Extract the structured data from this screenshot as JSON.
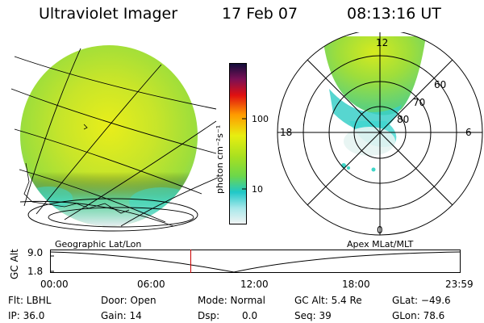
{
  "header": {
    "instrument": "Ultraviolet Imager",
    "date": "17 Feb 07",
    "time": "08:13:16 UT"
  },
  "colorbar": {
    "label": "photon cm⁻²s⁻¹",
    "ticks": [
      "100",
      "10"
    ]
  },
  "polar": {
    "mlt_labels": {
      "top": "12",
      "left": "18",
      "right": "6",
      "bottom": "0"
    },
    "lat_labels": [
      "60",
      "70",
      "80"
    ]
  },
  "timeline": {
    "left_title": "Geographic Lat/Lon",
    "right_title": "Apex  MLat/MLT",
    "axis_label": "GC Alt",
    "y_ticks": [
      "9.0",
      "1.8"
    ],
    "x_ticks": [
      "00:00",
      "06:00",
      "12:00",
      "18:00",
      "23:59"
    ],
    "current_time_hours": 8.22
  },
  "status": {
    "filter": "Flt: LBHL",
    "door": "Door: Open",
    "mode": "Mode: Normal",
    "gc_alt": "GC Alt: 5.4 Re",
    "glat": "GLat: −49.6",
    "ip": "IP: 36.0",
    "gain": "Gain: 14",
    "dsp_label": "Dsp:",
    "dsp_value": "0.0",
    "seq": "Seq: 39",
    "glon": "GLon: 78.6"
  }
}
